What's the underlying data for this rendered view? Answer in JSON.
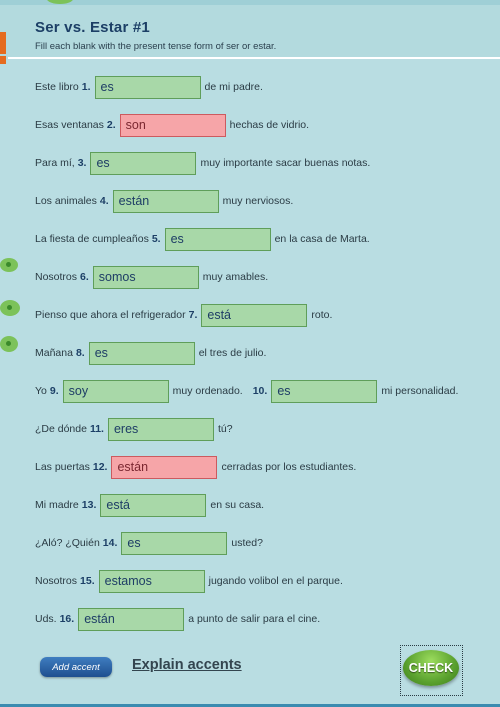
{
  "title": "Ser vs. Estar #1",
  "instructions": "Fill each blank with the present tense form of ser or estar.",
  "questions": [
    {
      "pre": "Este libro",
      "num": "1.",
      "answer": "es",
      "status": "correct",
      "post": "de mi padre."
    },
    {
      "pre": "Esas ventanas",
      "num": "2.",
      "answer": "son",
      "status": "wrong",
      "post": "hechas de vidrio."
    },
    {
      "pre": "Para mí,",
      "num": "3.",
      "answer": "es",
      "status": "correct",
      "post": "muy importante sacar buenas notas."
    },
    {
      "pre": "Los animales",
      "num": "4.",
      "answer": "están",
      "status": "correct",
      "post": "muy nerviosos."
    },
    {
      "pre": "La fiesta de cumpleaños",
      "num": "5.",
      "answer": "es",
      "status": "correct",
      "post": "en la casa de Marta."
    },
    {
      "pre": "Nosotros",
      "num": "6.",
      "answer": "somos",
      "status": "correct",
      "post": "muy amables."
    },
    {
      "pre": "Pienso que ahora el refrigerador",
      "num": "7.",
      "answer": "está",
      "status": "correct",
      "post": "roto."
    },
    {
      "pre": "Mañana",
      "num": "8.",
      "answer": "es",
      "status": "correct",
      "post": "el tres de julio."
    },
    {
      "pre": "Yo",
      "num": "9.",
      "answer": "soy",
      "status": "correct",
      "post": "muy ordenado.",
      "num2": "10.",
      "answer2": "es",
      "status2": "correct",
      "post2": "mi personalidad."
    },
    {
      "pre": "¿De dónde",
      "num": "11.",
      "answer": "eres",
      "status": "correct",
      "post": "tú?"
    },
    {
      "pre": "Las puertas",
      "num": "12.",
      "answer": "están",
      "status": "wrong",
      "post": "cerradas por los estudiantes."
    },
    {
      "pre": "Mi madre",
      "num": "13.",
      "answer": "está",
      "status": "correct",
      "post": "en su casa."
    },
    {
      "pre": "¿Aló? ¿Quién",
      "num": "14.",
      "answer": "es",
      "status": "correct",
      "post": "usted?"
    },
    {
      "pre": "Nosotros",
      "num": "15.",
      "answer": "estamos",
      "status": "correct",
      "post": "jugando volibol en el parque."
    },
    {
      "pre": "Uds.",
      "num": "16.",
      "answer": "están",
      "status": "correct",
      "post": "a punto de salir para el cine."
    }
  ],
  "buttons": {
    "add_accent": "Add accent",
    "explain_accents": "Explain accents",
    "check": "CHECK"
  },
  "colors": {
    "panel_bg": "#b9dde2",
    "correct_fill": "#a8d8a8",
    "wrong_fill": "#f6a5a8",
    "title": "#1c3f66",
    "check_button": "#5aa12e",
    "accent_button": "#2a63a8",
    "orange_tab": "#e56b1f"
  },
  "icons": {
    "frog_decoration": "frog-feet-icon",
    "top_decoration": "frog-head-icon"
  }
}
